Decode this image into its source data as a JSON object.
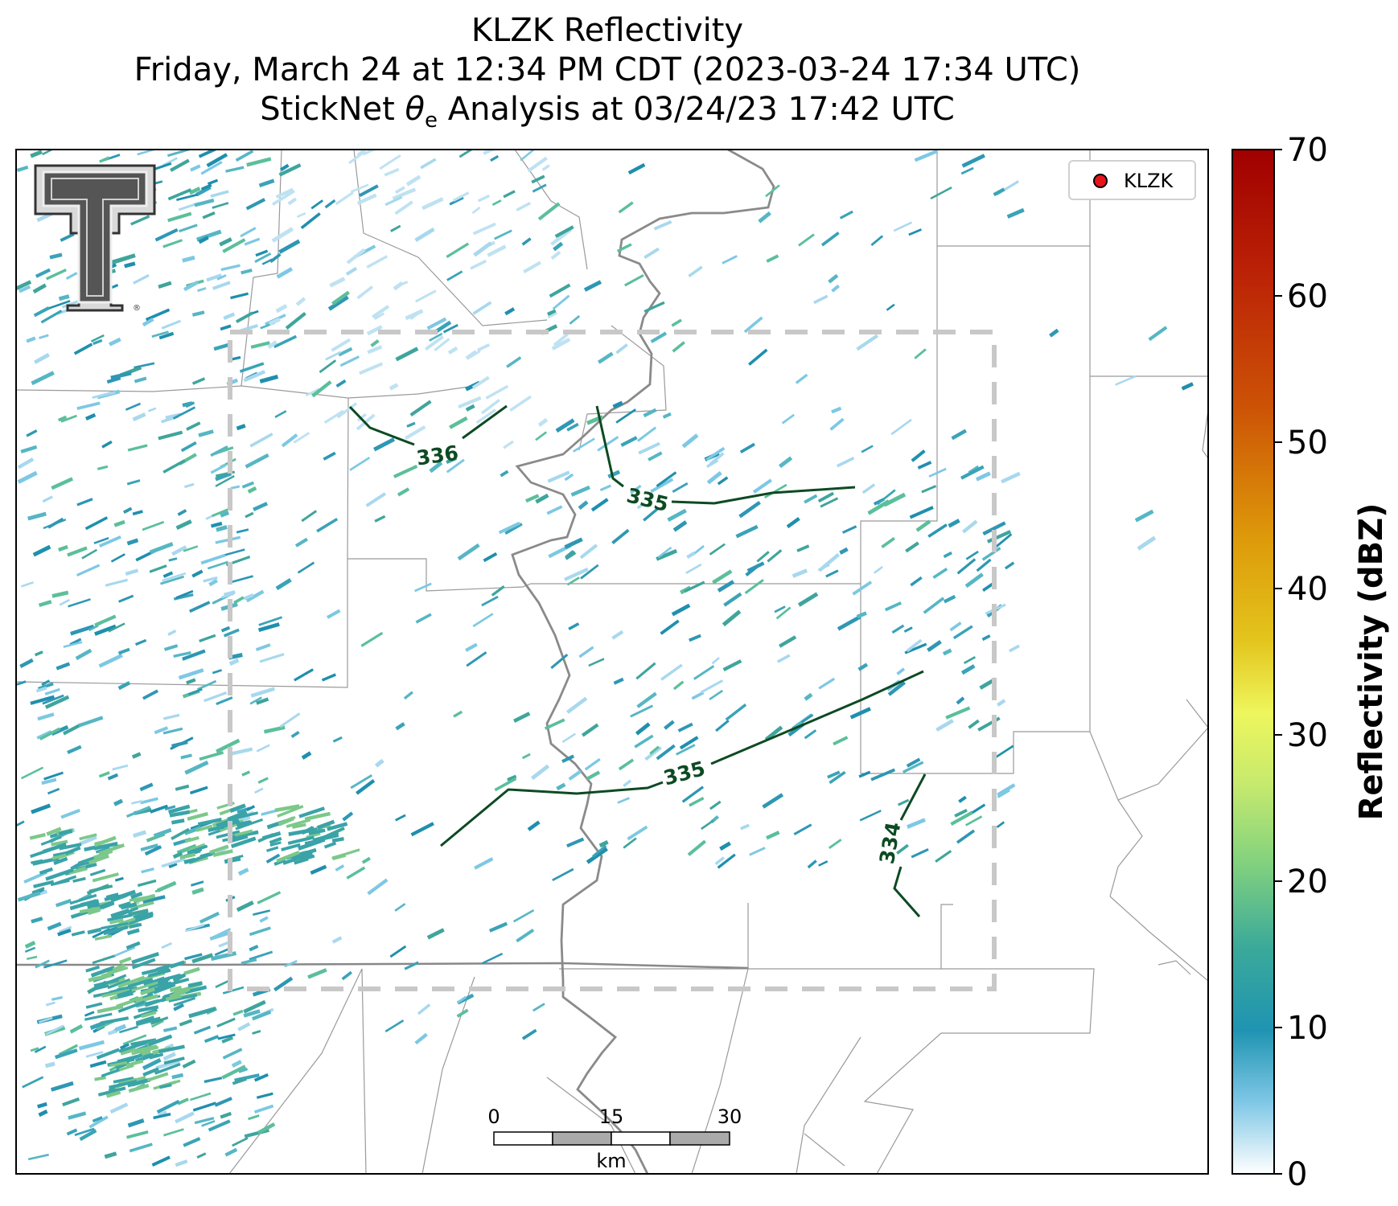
{
  "title": {
    "line1": "KLZK Reflectivity",
    "line2": "Friday, March 24 at 12:34 PM CDT (2023-03-24 17:34 UTC)",
    "line3_prefix": "StickNet ",
    "line3_symbol": "θ",
    "line3_subscript": "e",
    "line3_suffix": " Analysis at 03/24/23 17:42 UTC"
  },
  "legend": {
    "label": "KLZK",
    "marker_color": "#e8141b"
  },
  "colorbar": {
    "label": "Reflectivity (dBZ)",
    "ticks": [
      "0",
      "10",
      "20",
      "30",
      "40",
      "50",
      "60",
      "70"
    ],
    "min": 0,
    "max": 70
  },
  "contours": [
    {
      "label": "336"
    },
    {
      "label": "335"
    },
    {
      "label": "335"
    },
    {
      "label": "334"
    }
  ],
  "scalebar": {
    "ticks": [
      "0",
      "15",
      "30"
    ],
    "unit": "km"
  },
  "logo": {
    "icon": "texas-tech-double-t-logo"
  },
  "colors": {
    "contour": "#0d4a23",
    "river": "#8a8a8a",
    "county_lines": "#9a9a9a",
    "domain_box": "#c8c8c8",
    "echo_primary": "#2e97b4"
  }
}
